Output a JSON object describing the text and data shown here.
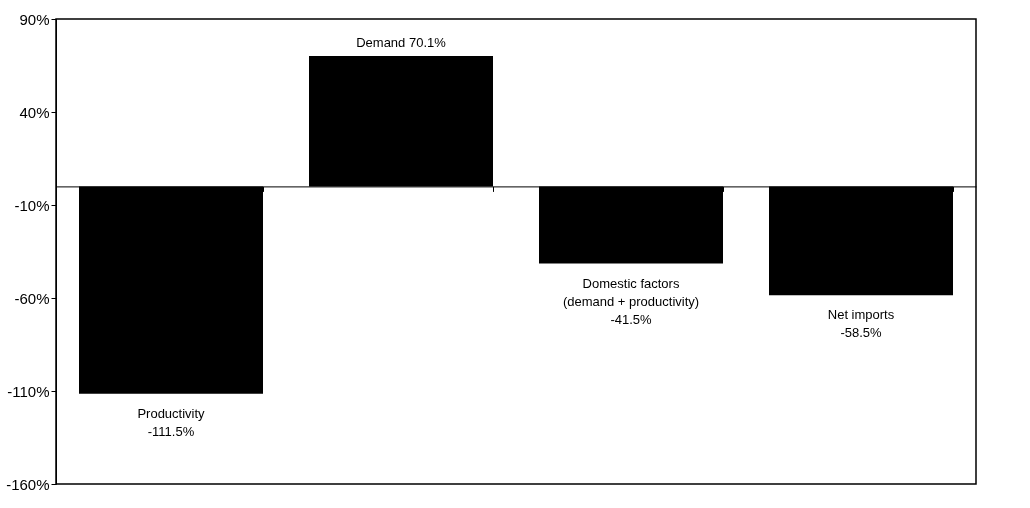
{
  "chart_data": {
    "type": "bar",
    "categories": [
      null,
      null,
      null,
      null
    ],
    "values": [
      -111.5,
      70.1,
      -41.5,
      -58.5
    ],
    "value_labels": [
      "Productivity\n-111.5%",
      "Demand 70.1%",
      "Domestic factors\n(demand + productivity)\n-41.5%",
      "Net imports\n-58.5%"
    ],
    "color": "#000000",
    "ylim": [
      -160,
      90
    ],
    "yticks": [
      {
        "value": 90,
        "label": "90%"
      },
      {
        "value": 40,
        "label": "40%"
      },
      {
        "value": -10,
        "label": "-10%"
      },
      {
        "value": -60,
        "label": "-60%"
      },
      {
        "value": -110,
        "label": "-110%"
      },
      {
        "value": -160,
        "label": "-160%"
      }
    ],
    "tick_labels": "y",
    "grid": false
  }
}
